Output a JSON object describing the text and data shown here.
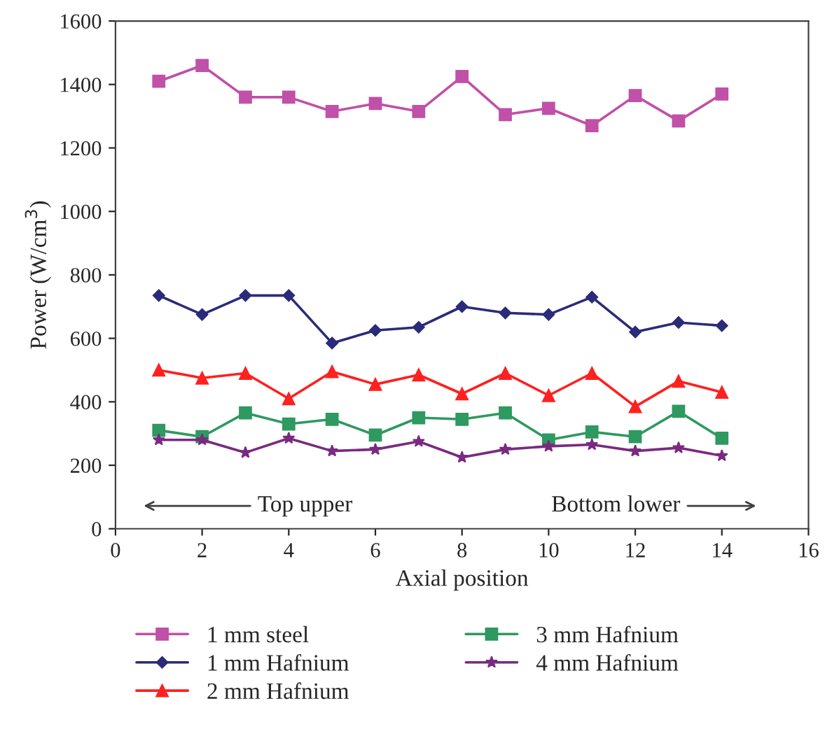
{
  "chart_data": {
    "type": "line",
    "xlabel": "Axial position",
    "ylabel": "Power (W/cm$^{3}$)",
    "x": [
      1,
      2,
      3,
      4,
      5,
      6,
      7,
      8,
      9,
      10,
      11,
      12,
      13,
      14
    ],
    "series": [
      {
        "name": "1 mm steel",
        "color": "#c050a8",
        "marker": "square",
        "values": [
          1410,
          1460,
          1360,
          1360,
          1315,
          1340,
          1315,
          1425,
          1305,
          1325,
          1270,
          1365,
          1285,
          1370
        ]
      },
      {
        "name": "1 mm Hafnium",
        "color": "#2b2b7a",
        "marker": "diamond",
        "values": [
          735,
          675,
          735,
          735,
          585,
          625,
          635,
          700,
          680,
          675,
          730,
          620,
          650,
          640
        ]
      },
      {
        "name": "2 mm Hafnium",
        "color": "#ff2020",
        "marker": "triangle",
        "values": [
          500,
          475,
          490,
          410,
          495,
          455,
          485,
          425,
          490,
          420,
          490,
          385,
          465,
          430
        ]
      },
      {
        "name": "3 mm Hafnium",
        "color": "#2e9960",
        "marker": "square",
        "values": [
          310,
          290,
          365,
          330,
          345,
          295,
          350,
          345,
          365,
          280,
          305,
          290,
          370,
          285
        ]
      },
      {
        "name": "4 mm Hafnium",
        "color": "#7a2a80",
        "marker": "star",
        "values": [
          280,
          280,
          240,
          285,
          245,
          250,
          275,
          225,
          250,
          260,
          265,
          245,
          255,
          230
        ]
      }
    ],
    "annotations": [
      "Top upper",
      "Bottom lower"
    ],
    "xlim": [
      0,
      16
    ],
    "xticks": [
      0,
      2,
      4,
      6,
      8,
      10,
      12,
      14,
      16
    ],
    "ylim": [
      0,
      1600
    ],
    "yticks": [
      0,
      200,
      400,
      600,
      800,
      1000,
      1200,
      1400,
      1600
    ],
    "grid": false,
    "legend": "bottom",
    "line_style": "solid"
  }
}
